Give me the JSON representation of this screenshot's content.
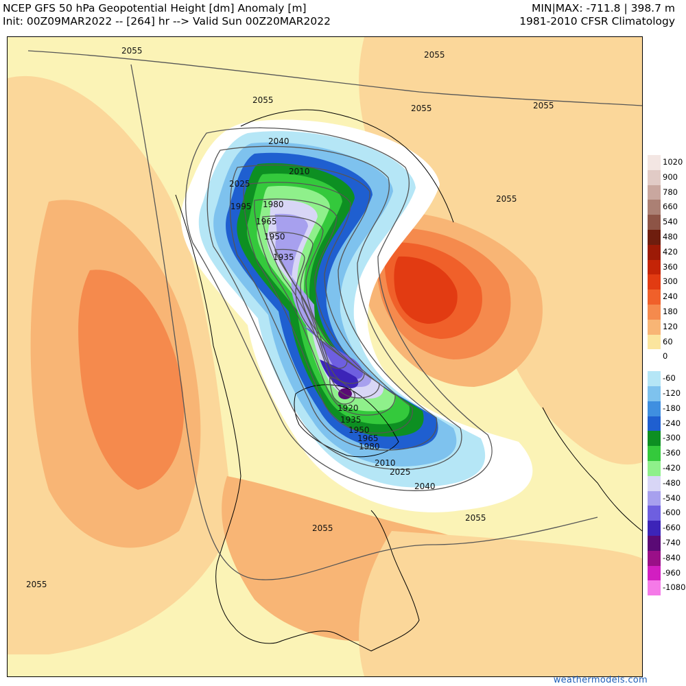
{
  "header": {
    "line1_left": "NCEP GFS 50 hPa Geopotential Height [dm] Anomaly [m]",
    "line2_left": "Init: 00Z09MAR2022 -- [264] hr --> Valid Sun 00Z20MAR2022",
    "line1_right": "MIN|MAX: -711.8 | 398.7 m",
    "line2_right": "1981-2010 CFSR Climatology"
  },
  "credit": "weathermodels.com",
  "legend": {
    "items": [
      {
        "label": "1020",
        "color": "#f3e6e3"
      },
      {
        "label": "900",
        "color": "#e1cbc6"
      },
      {
        "label": "780",
        "color": "#c9a79f"
      },
      {
        "label": "660",
        "color": "#ab8074"
      },
      {
        "label": "540",
        "color": "#8d5446"
      },
      {
        "label": "480",
        "color": "#6e1d0e"
      },
      {
        "label": "420",
        "color": "#9c1a06"
      },
      {
        "label": "360",
        "color": "#c42407"
      },
      {
        "label": "300",
        "color": "#e23b12"
      },
      {
        "label": "240",
        "color": "#f0602a"
      },
      {
        "label": "180",
        "color": "#f58a4d"
      },
      {
        "label": "120",
        "color": "#f8b575"
      },
      {
        "label": "60",
        "color": "#fbe59e"
      },
      {
        "label": "0",
        "color": "#ffffff"
      },
      {
        "label": "-60",
        "color": "#b5e6f6"
      },
      {
        "label": "-120",
        "color": "#7ec2ee"
      },
      {
        "label": "-180",
        "color": "#3f8fe0"
      },
      {
        "label": "-240",
        "color": "#1f5fd0"
      },
      {
        "label": "-300",
        "color": "#0d8f22"
      },
      {
        "label": "-360",
        "color": "#34c93c"
      },
      {
        "label": "-420",
        "color": "#8ff08b"
      },
      {
        "label": "-480",
        "color": "#d8d6f6"
      },
      {
        "label": "-540",
        "color": "#a7a0ee"
      },
      {
        "label": "-600",
        "color": "#6e5fe0"
      },
      {
        "label": "-660",
        "color": "#3c24b8"
      },
      {
        "label": "-740",
        "color": "#5a0a75"
      },
      {
        "label": "-840",
        "color": "#9a0f88"
      },
      {
        "label": "-960",
        "color": "#d21ec1"
      },
      {
        "label": "-1080",
        "color": "#f57ae8"
      }
    ]
  },
  "map": {
    "contour_labels": [
      "2055",
      "2055",
      "2055",
      "2055",
      "2055",
      "2055",
      "2055",
      "2055",
      "2055",
      "2040",
      "2040",
      "2025",
      "2025",
      "2010",
      "2010",
      "1995",
      "1980",
      "1980",
      "1965",
      "1965",
      "1950",
      "1950",
      "1935",
      "1935",
      "1920"
    ],
    "colors": {
      "ocean_base": "#fbf3b6",
      "land_fill": "#fdeaa8",
      "pos_light": "#fbd79a",
      "pos_mid": "#f8b575",
      "pos_strong": "#f58a4d",
      "pos_stronger": "#f0602a",
      "pos_peak": "#e23b12",
      "neg_white": "#ffffff",
      "neg_cyan": "#b5e6f6",
      "neg_lightblue": "#7ec2ee",
      "neg_blue": "#3f8fe0",
      "neg_darkblue": "#1f5fd0",
      "neg_green_dark": "#0d8f22",
      "neg_green": "#34c93c",
      "neg_green_light": "#8ff08b",
      "neg_lavender": "#d8d6f6",
      "neg_violet": "#a7a0ee",
      "neg_purple": "#6e5fe0",
      "neg_indigo": "#3c24b8",
      "neg_core": "#5a0a75"
    }
  }
}
